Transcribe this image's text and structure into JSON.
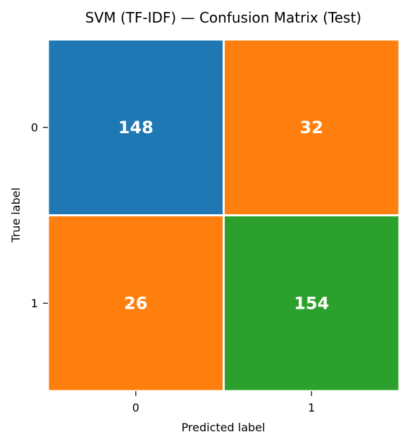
{
  "chart_data": {
    "type": "heatmap",
    "title": "SVM (TF-IDF) — Confusion Matrix (Test)",
    "xlabel": "Predicted label",
    "ylabel": "True label",
    "x_categories": [
      "0",
      "1"
    ],
    "y_categories": [
      "0",
      "1"
    ],
    "matrix": [
      [
        148,
        32
      ],
      [
        26,
        154
      ]
    ],
    "cell_colors": [
      [
        "#1f77b4",
        "#ff7f0e"
      ],
      [
        "#ff7f0e",
        "#2ca02c"
      ]
    ],
    "grid": false,
    "legend": "none"
  }
}
